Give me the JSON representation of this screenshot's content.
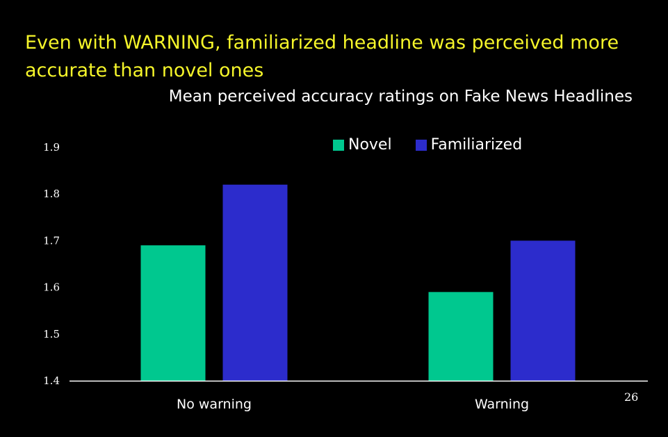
{
  "slide": {
    "title": "Even with WARNING, familiarized headline was perceived more accurate than novel ones",
    "page_number": "26"
  },
  "colors": {
    "background": "#000000",
    "title": "#f5f52a",
    "novel": "#00c88f",
    "familiarized": "#2c2ccc",
    "axis": "#ffffff"
  },
  "chart_data": {
    "type": "bar",
    "title": "Mean perceived accuracy ratings on Fake News Headlines",
    "xlabel": "",
    "ylabel": "",
    "categories": [
      "No warning",
      "Warning"
    ],
    "series": [
      {
        "name": "Novel",
        "values": [
          1.69,
          1.59
        ],
        "color": "#00c88f"
      },
      {
        "name": "Familiarized",
        "values": [
          1.82,
          1.7
        ],
        "color": "#2c2ccc"
      }
    ],
    "ylim": [
      1.4,
      1.9
    ],
    "yticks": [
      "1.4",
      "1.5",
      "1.6",
      "1.7",
      "1.8",
      "1.9"
    ],
    "grid": false,
    "legend_position": "top-right"
  }
}
